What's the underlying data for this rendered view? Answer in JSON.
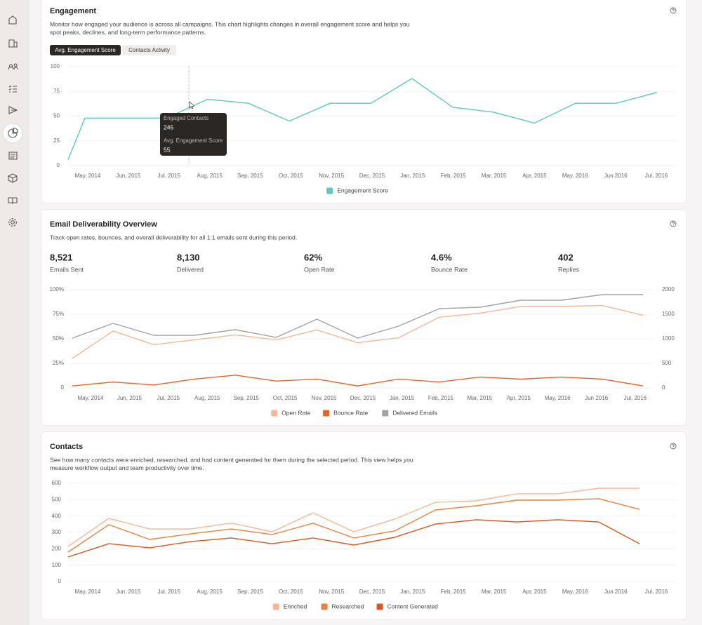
{
  "chart_data": [
    {
      "type": "line",
      "title": "Engagement",
      "description": [
        "Monitor how engaged your audience is across all campaigns. This chart highlights changes in overall engagement score and helps you",
        "spot peaks, declines, and long-term performance patterns."
      ],
      "tabs": [
        "Avg. Engagement Score",
        "Contacts Activity"
      ],
      "categories": [
        null,
        "May, 2014",
        "Jun, 2015",
        "Jul, 2015",
        "Aug, 2015",
        "Sep, 2015",
        "Oct, 2015",
        "Nov, 2015",
        "Dec, 2015",
        "Jan, 2015",
        "Feb, 2015",
        "Mar, 2015",
        "Apr, 2015",
        "May, 2016",
        "Jun 2016",
        "Jul, 2016"
      ],
      "series": [
        {
          "name": "Engagement Score",
          "color": "#5ccbb9",
          "values": [
            6,
            48,
            48,
            48,
            67,
            63,
            45,
            63,
            63,
            88,
            59,
            54,
            43,
            63,
            63,
            74
          ]
        }
      ],
      "ylim": [
        0,
        100
      ],
      "yticks": [
        0,
        25,
        50,
        75,
        100
      ],
      "grid": true,
      "legend": "bottom",
      "tooltip": {
        "items": [
          {
            "label": "Engaged Contacts",
            "value": 245
          },
          {
            "label": "Avg. Engagement Score",
            "value": 55
          }
        ]
      }
    },
    {
      "type": "line",
      "title": "Email Deliverability Overview",
      "description": [
        "Track open rates, bounces, and overall deliverability for all 1:1 emails sent during this period."
      ],
      "kpis": [
        {
          "value": "8,521",
          "label": "Emails Sent"
        },
        {
          "value": "8,130",
          "label": "Delivered"
        },
        {
          "value": "62%",
          "label": "Open Rate"
        },
        {
          "value": "4.6%",
          "label": "Bounce Rate"
        },
        {
          "value": "402",
          "label": "Replies"
        }
      ],
      "categories": [
        "May, 2014",
        "Jun, 2015",
        "Jul, 2015",
        "Aug, 2015",
        "Sep, 2015",
        "Oct, 2015",
        "Nov, 2015",
        "Dec, 2015",
        "Jan, 2015",
        "Feb, 2015",
        "Mar, 2015",
        "Apr, 2015",
        "May, 2016",
        "Jun 2016",
        "Jul, 2016"
      ],
      "series": [
        {
          "name": "Open Rate",
          "color": "#f4b896",
          "values": [
            30,
            58,
            44,
            49,
            54,
            49,
            59,
            46,
            51,
            72,
            76,
            83,
            83,
            84,
            74
          ]
        },
        {
          "name": "Bounce Rate",
          "color": "#e5642a",
          "values": [
            2,
            6,
            3,
            9,
            13,
            7,
            9,
            2,
            9,
            6,
            11,
            9,
            11,
            9,
            2
          ]
        },
        {
          "name": "Delivered Emails",
          "color": "#a3a3a3",
          "axis": "y2",
          "values": [
            1014,
            1314,
            1071,
            1071,
            1186,
            1029,
            1400,
            1014,
            1257,
            1614,
            1643,
            1786,
            1786,
            1900,
            1900
          ]
        }
      ],
      "ylim": [
        0,
        100
      ],
      "yticks": [
        0,
        {
          "value": 25,
          "label": "25%"
        },
        {
          "value": 50,
          "label": "50%"
        },
        {
          "value": 75,
          "label": "75%"
        },
        {
          "value": 100,
          "label": "100%"
        }
      ],
      "y2lim": [
        0,
        2000
      ],
      "y2ticks": [
        0,
        500,
        1000,
        1500,
        2000
      ],
      "grid": true,
      "legend": "bottom"
    },
    {
      "type": "line",
      "title": "Contacts",
      "description": [
        "See how many contacts were enriched, researched, and had content generated for them during the selected period. This view helps you",
        "measure workflow output and team productivity over time."
      ],
      "categories": [
        "May, 2014",
        "Jun, 2015",
        "Jul, 2015",
        "Aug, 2015",
        "Sep, 2015",
        "Oct, 2015",
        "Nov, 2015",
        "Dec, 2015",
        "Jan, 2015",
        "Feb, 2015",
        "Mar, 2015",
        "Apr, 2015",
        "May, 2016",
        "Jun 2016",
        "Jul, 2016"
      ],
      "series": [
        {
          "name": "Enriched",
          "color": "#f4b896",
          "values": [
            214,
            386,
            321,
            321,
            357,
            304,
            420,
            304,
            381,
            484,
            493,
            536,
            536,
            570,
            570
          ]
        },
        {
          "name": "Researched",
          "color": "#e8843f",
          "values": [
            180,
            347,
            257,
            291,
            321,
            287,
            356,
            266,
            309,
            437,
            463,
            497,
            497,
            506,
            441
          ]
        },
        {
          "name": "Content Generated",
          "color": "#d9581d",
          "values": [
            150,
            231,
            206,
            244,
            266,
            231,
            266,
            223,
            270,
            351,
            377,
            364,
            377,
            364,
            231
          ]
        }
      ],
      "ylim": [
        0,
        600
      ],
      "yticks": [
        0,
        100,
        200,
        300,
        400,
        500,
        600
      ],
      "grid": true,
      "legend": "bottom"
    }
  ]
}
